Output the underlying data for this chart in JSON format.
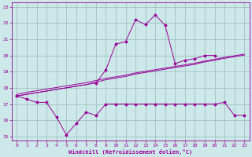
{
  "x_values": [
    0,
    1,
    2,
    3,
    4,
    5,
    6,
    7,
    8,
    9,
    10,
    11,
    12,
    13,
    14,
    15,
    16,
    17,
    18,
    19,
    20,
    21,
    22,
    23
  ],
  "line_windchill_y": [
    17.5,
    17.3,
    17.1,
    17.1,
    16.2,
    15.1,
    15.8,
    16.5,
    16.3,
    17.0,
    17.0,
    17.0,
    17.0,
    17.0,
    17.0,
    17.0,
    17.0,
    17.0,
    17.0,
    17.0,
    17.0,
    17.1,
    16.3,
    16.3
  ],
  "line_temp_y": [
    17.5,
    null,
    null,
    null,
    null,
    null,
    null,
    null,
    18.3,
    19.1,
    20.7,
    20.85,
    22.2,
    21.9,
    22.5,
    21.85,
    19.5,
    19.7,
    19.8,
    20.0,
    20.0,
    null,
    null,
    null
  ],
  "line_reg1_y": [
    17.5,
    17.6,
    17.7,
    17.8,
    17.9,
    18.0,
    18.1,
    18.2,
    18.35,
    18.5,
    18.6,
    18.7,
    18.85,
    18.95,
    19.05,
    19.15,
    19.25,
    19.35,
    19.45,
    19.6,
    19.7,
    19.82,
    19.92,
    20.02
  ],
  "line_reg2_y": [
    17.6,
    17.72,
    17.82,
    17.92,
    18.02,
    18.12,
    18.22,
    18.32,
    18.45,
    18.58,
    18.68,
    18.78,
    18.92,
    19.02,
    19.12,
    19.22,
    19.32,
    19.42,
    19.52,
    19.65,
    19.76,
    19.88,
    19.98,
    20.08
  ],
  "line_color": "#990099",
  "bg_color": "#cce8e8",
  "grid_color": "#99bbbb",
  "xlabel": "Windchill (Refroidissement éolien,°C)",
  "ylim": [
    14.75,
    23.25
  ],
  "xlim": [
    -0.5,
    23.5
  ],
  "yticks": [
    15,
    16,
    17,
    18,
    19,
    20,
    21,
    22,
    23
  ],
  "xticks": [
    0,
    1,
    2,
    3,
    4,
    5,
    6,
    7,
    8,
    9,
    10,
    11,
    12,
    13,
    14,
    15,
    16,
    17,
    18,
    19,
    20,
    21,
    22,
    23
  ]
}
